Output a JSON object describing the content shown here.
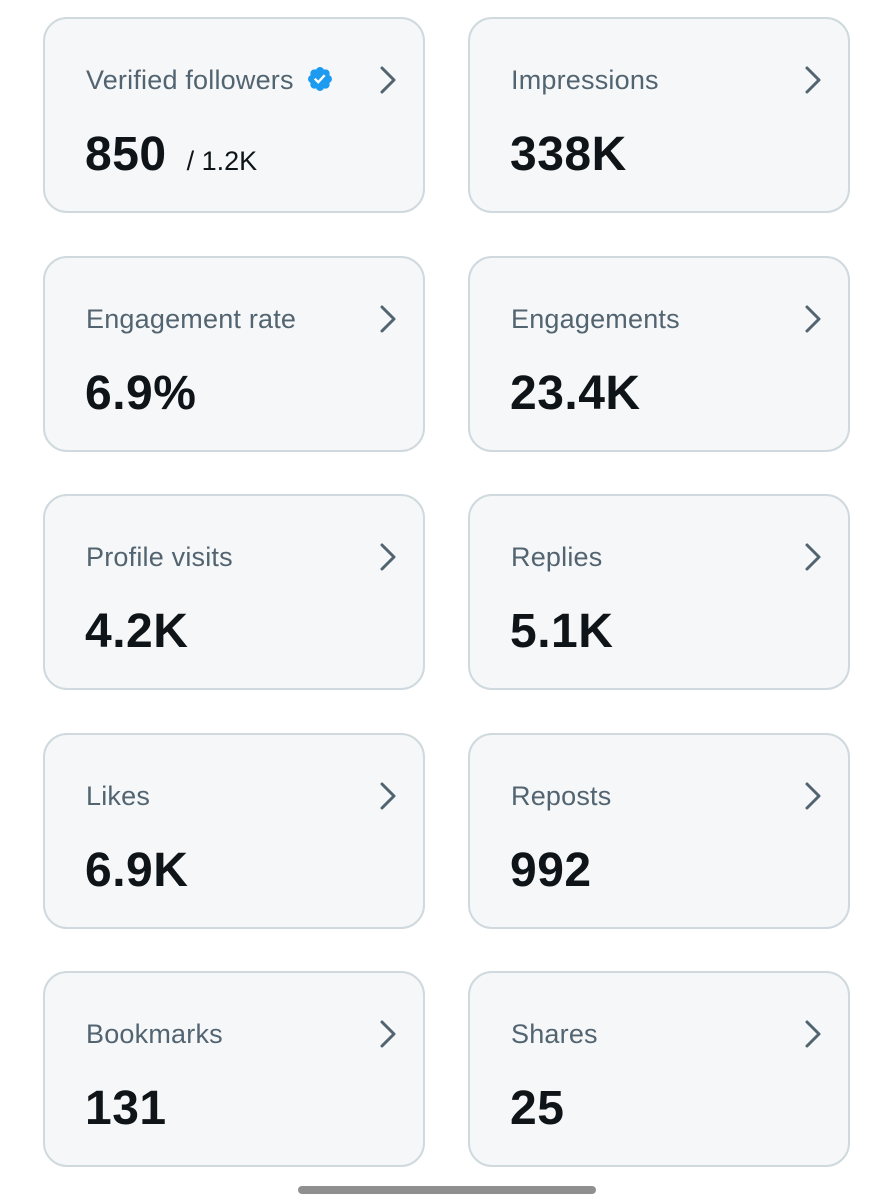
{
  "cards": [
    {
      "label": "Verified followers",
      "value": "850",
      "sub": "/ 1.2K",
      "verified_icon": "verified-badge-icon",
      "verified_color": "#1d9bf0"
    },
    {
      "label": "Impressions",
      "value": "338K"
    },
    {
      "label": "Engagement rate",
      "value": "6.9%"
    },
    {
      "label": "Engagements",
      "value": "23.4K"
    },
    {
      "label": "Profile visits",
      "value": "4.2K"
    },
    {
      "label": "Replies",
      "value": "5.1K"
    },
    {
      "label": "Likes",
      "value": "6.9K"
    },
    {
      "label": "Reposts",
      "value": "992"
    },
    {
      "label": "Bookmarks",
      "value": "131"
    },
    {
      "label": "Shares",
      "value": "25"
    }
  ],
  "icons": {
    "chevron": "chevron-right-icon",
    "verified": "verified-badge-icon"
  },
  "colors": {
    "card_background": "#f5f7f8",
    "card_border": "#cfd9de",
    "label": "#536471",
    "value": "#0f1419",
    "chevron": "#536471",
    "verified_badge": "#1d9bf0"
  }
}
